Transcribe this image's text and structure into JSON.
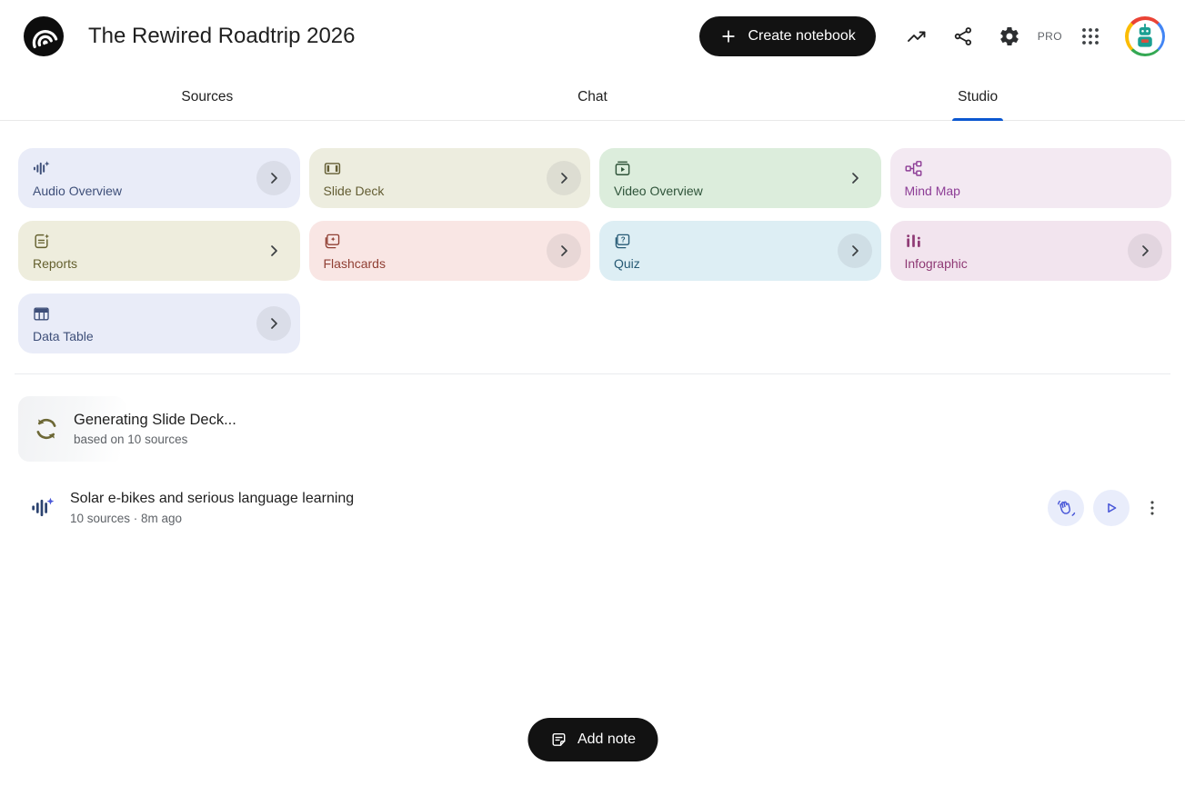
{
  "header": {
    "title": "The Rewired Roadtrip 2026",
    "create_button_label": "Create notebook",
    "pro_badge": "PRO",
    "icons": [
      "notebooklm-logo",
      "plus-icon",
      "trending-up-icon",
      "share-icon",
      "settings-gear-icon",
      "apps-grid-icon",
      "avatar"
    ]
  },
  "tabs": [
    {
      "label": "Sources",
      "active": false
    },
    {
      "label": "Chat",
      "active": false
    },
    {
      "label": "Studio",
      "active": true
    }
  ],
  "colors": {
    "accent_blue": "#0b57d0",
    "button_black": "#121212",
    "text_secondary": "#5f6368",
    "action_icon_blue": "#4a58d8",
    "action_circle_bg": "#e9edfb"
  },
  "studio": {
    "cards": [
      {
        "id": "audio-overview",
        "label": "Audio Overview",
        "icon": "audio-waveform-icon",
        "bg": "#e9ecf8",
        "fg": "#3e4f79",
        "chevron": "circle"
      },
      {
        "id": "slide-deck",
        "label": "Slide Deck",
        "icon": "slide-deck-icon",
        "bg": "#ededdf",
        "fg": "#635d33",
        "chevron": "circle"
      },
      {
        "id": "video-overview",
        "label": "Video Overview",
        "icon": "video-overview-icon",
        "bg": "#dceddc",
        "fg": "#2e5339",
        "chevron": "plain"
      },
      {
        "id": "mind-map",
        "label": "Mind Map",
        "icon": "mind-map-icon",
        "bg": "#f3e9f2",
        "fg": "#8d3d96",
        "chevron": "none"
      },
      {
        "id": "reports",
        "label": "Reports",
        "icon": "report-sparkle-icon",
        "bg": "#eeeddd",
        "fg": "#64602e",
        "chevron": "plain"
      },
      {
        "id": "flashcards",
        "label": "Flashcards",
        "icon": "flashcards-icon",
        "bg": "#f9e6e4",
        "fg": "#903f33",
        "chevron": "circle"
      },
      {
        "id": "quiz",
        "label": "Quiz",
        "icon": "quiz-icon",
        "bg": "#ddeef4",
        "fg": "#265a74",
        "chevron": "circle"
      },
      {
        "id": "infographic",
        "label": "Infographic",
        "icon": "infographic-icon",
        "bg": "#f2e4ee",
        "fg": "#8f3a75",
        "chevron": "circle"
      },
      {
        "id": "data-table",
        "label": "Data Table",
        "icon": "data-table-icon",
        "bg": "#e9ecf8",
        "fg": "#3e4f79",
        "chevron": "circle"
      }
    ],
    "generating": {
      "title": "Generating Slide Deck...",
      "subtitle": "based on 10 sources",
      "icon": "sync-arrows-icon"
    },
    "audio_item": {
      "title": "Solar e-bikes and serious language learning",
      "meta": "10 sources · 8m ago",
      "icon": "audio-waveform-icon",
      "actions": [
        "interactive-mode-hand-icon",
        "play-icon",
        "more-menu-icon"
      ]
    },
    "add_note_label": "Add note"
  }
}
